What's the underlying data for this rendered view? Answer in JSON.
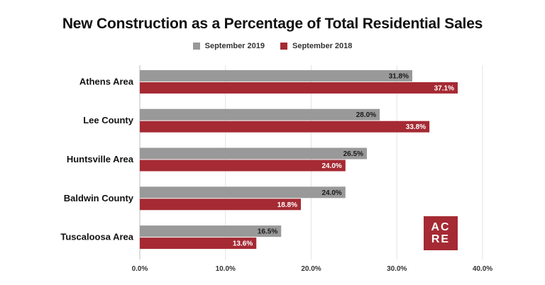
{
  "chart_data": {
    "type": "bar",
    "orientation": "horizontal",
    "title": "New Construction as a Percentage of Total Residential Sales",
    "categories": [
      "Athens Area",
      "Lee County",
      "Huntsville Area",
      "Baldwin County",
      "Tuscaloosa Area"
    ],
    "series": [
      {
        "name": "September 2019",
        "color": "#999999",
        "values": [
          31.8,
          28.0,
          26.5,
          24.0,
          16.5
        ]
      },
      {
        "name": "September 2018",
        "color": "#a52a33",
        "values": [
          37.1,
          33.8,
          24.0,
          18.8,
          13.6
        ]
      }
    ],
    "xlim": [
      0,
      40
    ],
    "xticks": [
      "0.0%",
      "10.0%",
      "20.0%",
      "30.0%",
      "40.0%"
    ],
    "value_format": "percent_1dp",
    "legend_position": "top",
    "grid": "vertical"
  },
  "logo": {
    "line1": "AC",
    "line2": "RE",
    "color": "#a52a33"
  }
}
